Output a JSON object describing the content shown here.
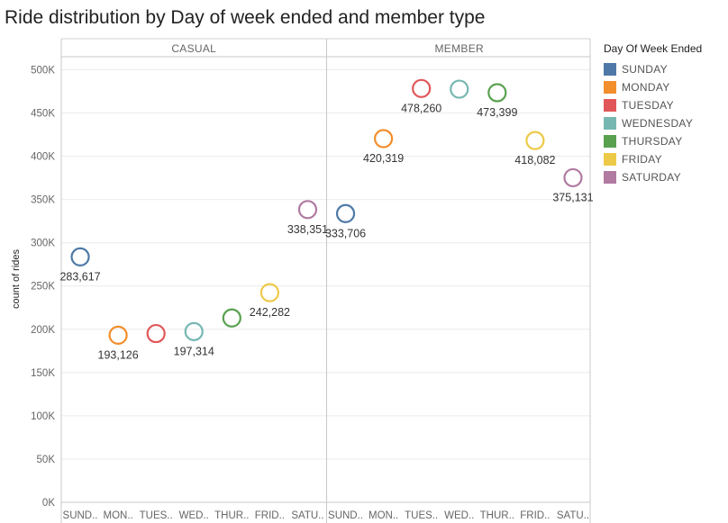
{
  "chart_data": {
    "type": "scatter",
    "title": "Ride distribution by Day of week ended and member type",
    "ylabel": "count of rides",
    "ylim": [
      0,
      515000
    ],
    "yticks": [
      0,
      50000,
      100000,
      150000,
      200000,
      250000,
      300000,
      350000,
      400000,
      450000,
      500000
    ],
    "ytick_labels": [
      "0K",
      "50K",
      "100K",
      "150K",
      "200K",
      "250K",
      "300K",
      "350K",
      "400K",
      "450K",
      "500K"
    ],
    "categories": [
      "SUND..",
      "MON..",
      "TUES..",
      "WED..",
      "THUR..",
      "FRID..",
      "SATU.."
    ],
    "grid": true,
    "legend_position": "right",
    "panels": [
      {
        "name": "CASUAL",
        "values": [
          283617,
          193126,
          195000,
          197314,
          213000,
          242282,
          338351
        ],
        "labels": [
          "283,617",
          "193,126",
          "",
          "197,314",
          "",
          "242,282",
          "338,351"
        ]
      },
      {
        "name": "MEMBER",
        "values": [
          333706,
          420319,
          478260,
          477500,
          473399,
          418082,
          375131
        ],
        "labels": [
          "333,706",
          "420,319",
          "478,260",
          "",
          "473,399",
          "418,082",
          "375,131"
        ]
      }
    ],
    "legend": {
      "title": "Day Of Week Ended",
      "items": [
        {
          "label": "SUNDAY",
          "color": "#4e79a7"
        },
        {
          "label": "MONDAY",
          "color": "#f28e2b"
        },
        {
          "label": "TUESDAY",
          "color": "#e15759"
        },
        {
          "label": "WEDNESDAY",
          "color": "#76b7b2"
        },
        {
          "label": "THURSDAY",
          "color": "#59a14f"
        },
        {
          "label": "FRIDAY",
          "color": "#edc948"
        },
        {
          "label": "SATURDAY",
          "color": "#b07aa1"
        }
      ]
    }
  }
}
